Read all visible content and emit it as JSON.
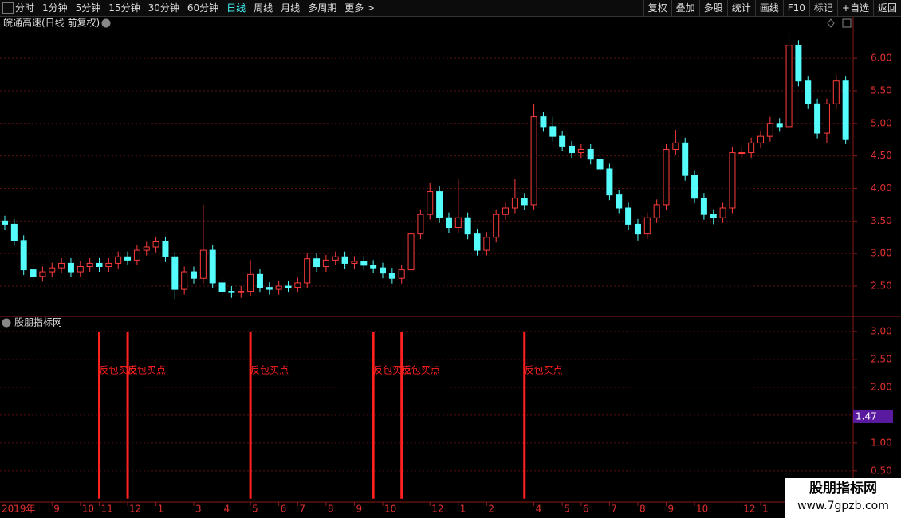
{
  "toolbar": {
    "periods": [
      "分时",
      "1分钟",
      "5分钟",
      "15分钟",
      "30分钟",
      "60分钟",
      "日线",
      "周线",
      "月线",
      "多周期",
      "更多 >"
    ],
    "active": "日线",
    "actions": [
      "复权",
      "叠加",
      "多股",
      "统计",
      "画线",
      "F10",
      "标记",
      "+自选",
      "返回"
    ]
  },
  "chart_data": {
    "type": "candlestick",
    "title": "皖通高速(日线 前复权)",
    "up_color": "#ff3c3c",
    "down_color": "#54fcfc",
    "categories": [
      null,
      "2019年",
      null,
      null,
      null,
      "9",
      null,
      null,
      "10",
      null,
      "11",
      null,
      null,
      "12",
      null,
      null,
      "1",
      null,
      null,
      null,
      "3",
      null,
      null,
      "4",
      null,
      null,
      "5",
      null,
      null,
      "6",
      null,
      "7",
      null,
      null,
      "8",
      null,
      null,
      "9",
      null,
      null,
      "10",
      null,
      null,
      null,
      null,
      "12",
      null,
      null,
      "1",
      null,
      null,
      "2",
      null,
      null,
      null,
      null,
      "4",
      null,
      null,
      "5",
      null,
      "6",
      null,
      null,
      "7",
      null,
      null,
      "8",
      null,
      null,
      "9",
      null,
      null,
      "10",
      null,
      null,
      null,
      null,
      "12",
      null,
      "1",
      null,
      null,
      null,
      null,
      null,
      null,
      null,
      null,
      null
    ],
    "open": [
      3.5,
      3.45,
      3.2,
      2.75,
      2.65,
      2.72,
      2.78,
      2.85,
      2.72,
      2.8,
      2.85,
      2.8,
      2.85,
      2.95,
      2.9,
      3.05,
      3.1,
      3.18,
      2.95,
      2.45,
      2.72,
      2.62,
      3.05,
      2.55,
      2.42,
      2.4,
      2.42,
      2.68,
      2.48,
      2.45,
      2.5,
      2.48,
      2.55,
      2.92,
      2.8,
      2.9,
      2.95,
      2.85,
      2.88,
      2.82,
      2.78,
      2.7,
      2.62,
      2.75,
      3.3,
      3.6,
      3.95,
      3.55,
      3.4,
      3.55,
      3.3,
      3.05,
      3.25,
      3.6,
      3.7,
      3.85,
      3.75,
      5.1,
      4.95,
      4.8,
      4.65,
      4.55,
      4.6,
      4.45,
      4.3,
      3.9,
      3.7,
      3.45,
      3.3,
      3.55,
      3.75,
      4.6,
      4.7,
      4.2,
      3.85,
      3.6,
      3.55,
      3.7,
      4.55,
      4.55,
      4.7,
      4.8,
      5.0,
      4.95,
      6.2,
      5.65,
      5.3,
      4.85,
      5.3,
      5.65
    ],
    "high": [
      3.58,
      3.53,
      3.28,
      2.83,
      2.8,
      2.86,
      2.93,
      2.93,
      2.88,
      2.93,
      2.93,
      2.93,
      3.03,
      3.03,
      3.13,
      3.18,
      3.26,
      3.26,
      3.03,
      2.8,
      2.8,
      3.75,
      3.13,
      2.63,
      2.5,
      2.5,
      2.9,
      2.76,
      2.56,
      2.58,
      2.58,
      2.63,
      3.0,
      3.0,
      2.98,
      3.03,
      3.03,
      2.96,
      2.96,
      2.9,
      2.86,
      2.78,
      2.83,
      3.38,
      3.68,
      4.08,
      4.03,
      3.63,
      4.15,
      3.63,
      3.38,
      3.33,
      3.68,
      3.78,
      4.15,
      3.93,
      5.3,
      5.18,
      5.1,
      4.88,
      4.73,
      4.68,
      4.68,
      4.53,
      4.38,
      3.98,
      3.78,
      3.53,
      3.63,
      3.83,
      4.68,
      4.9,
      4.78,
      4.28,
      3.93,
      3.68,
      3.78,
      4.63,
      4.63,
      4.78,
      4.88,
      5.1,
      5.08,
      6.38,
      6.28,
      5.73,
      5.38,
      5.38,
      5.75,
      5.73
    ],
    "low": [
      3.37,
      3.12,
      2.67,
      2.57,
      2.57,
      2.64,
      2.7,
      2.64,
      2.64,
      2.72,
      2.72,
      2.72,
      2.77,
      2.82,
      2.82,
      2.97,
      3.02,
      2.87,
      2.3,
      2.37,
      2.54,
      2.54,
      2.47,
      2.34,
      2.32,
      2.32,
      2.34,
      2.4,
      2.37,
      2.37,
      2.4,
      2.4,
      2.47,
      2.72,
      2.72,
      2.82,
      2.77,
      2.77,
      2.74,
      2.7,
      2.62,
      2.54,
      2.54,
      2.67,
      3.22,
      3.52,
      3.47,
      3.32,
      3.32,
      3.22,
      2.97,
      2.97,
      3.17,
      3.52,
      3.62,
      3.67,
      3.67,
      4.87,
      4.72,
      4.57,
      4.47,
      4.47,
      4.37,
      4.22,
      3.82,
      3.62,
      3.37,
      3.2,
      3.22,
      3.47,
      3.67,
      4.52,
      4.12,
      3.77,
      3.52,
      3.45,
      3.47,
      3.62,
      4.47,
      4.47,
      4.62,
      4.72,
      4.87,
      4.87,
      5.57,
      5.22,
      4.77,
      4.7,
      5.22,
      4.68
    ],
    "close": [
      3.45,
      3.2,
      2.75,
      2.65,
      2.72,
      2.78,
      2.85,
      2.72,
      2.8,
      2.85,
      2.8,
      2.85,
      2.95,
      2.9,
      3.05,
      3.1,
      3.18,
      2.95,
      2.45,
      2.72,
      2.62,
      3.05,
      2.55,
      2.42,
      2.4,
      2.42,
      2.68,
      2.48,
      2.45,
      2.5,
      2.48,
      2.55,
      2.92,
      2.8,
      2.9,
      2.95,
      2.85,
      2.88,
      2.82,
      2.78,
      2.7,
      2.62,
      2.75,
      3.3,
      3.6,
      3.95,
      3.55,
      3.4,
      3.55,
      3.3,
      3.05,
      3.25,
      3.6,
      3.7,
      3.85,
      3.75,
      5.1,
      4.95,
      4.8,
      4.65,
      4.55,
      4.6,
      4.45,
      4.3,
      3.9,
      3.7,
      3.45,
      3.3,
      3.55,
      3.75,
      4.6,
      4.7,
      4.2,
      3.85,
      3.6,
      3.55,
      3.7,
      4.55,
      4.55,
      4.7,
      4.8,
      5.0,
      4.95,
      6.2,
      5.65,
      5.3,
      4.85,
      5.3,
      5.65,
      4.75
    ],
    "ylim": [
      2.035,
      6.43
    ],
    "yticks": [
      {
        "value": 2.5,
        "label": "2.50"
      },
      {
        "value": 3,
        "label": "3.00"
      },
      {
        "value": 3.5,
        "label": "3.50"
      },
      {
        "value": 4,
        "label": "4.00"
      },
      {
        "value": 4.5,
        "label": "4.50"
      },
      {
        "value": 5,
        "label": "5.00"
      },
      {
        "value": 5.5,
        "label": "5.50"
      },
      {
        "value": 6,
        "label": "6.00"
      }
    ],
    "grid": true,
    "indicator": {
      "name": "股朋指标网",
      "signal_label": "反包买点",
      "color": "#ff2020",
      "values": [
        null,
        null,
        null,
        null,
        null,
        null,
        null,
        null,
        null,
        null,
        3,
        null,
        null,
        3,
        null,
        null,
        null,
        null,
        null,
        null,
        null,
        null,
        null,
        null,
        null,
        null,
        3,
        null,
        null,
        null,
        null,
        null,
        null,
        null,
        null,
        null,
        null,
        null,
        null,
        3,
        null,
        null,
        3,
        null,
        null,
        null,
        null,
        null,
        null,
        null,
        null,
        null,
        null,
        null,
        null,
        3,
        null,
        null,
        null,
        null,
        null,
        null,
        null,
        null,
        null,
        null,
        null,
        null,
        null,
        null,
        null,
        null,
        null,
        null,
        null,
        null,
        null,
        null,
        null,
        null,
        null,
        null,
        null,
        null,
        null,
        null,
        null,
        null,
        null,
        null
      ],
      "ylim": [
        -0.06,
        3.27
      ],
      "yticks": [
        {
          "value": 0.5,
          "label": "0.50"
        },
        {
          "value": 1,
          "label": "1.00"
        },
        {
          "value": 1.5,
          "label": "1.50"
        },
        {
          "value": 2,
          "label": "2.00"
        },
        {
          "value": 2.5,
          "label": "2.50"
        },
        {
          "value": 3,
          "label": "3.00"
        }
      ],
      "last_value": 1.47,
      "last_color": "#5a1aa0"
    }
  },
  "watermark": {
    "name": "股朋指标网",
    "url": "www.7gpzb.com"
  }
}
